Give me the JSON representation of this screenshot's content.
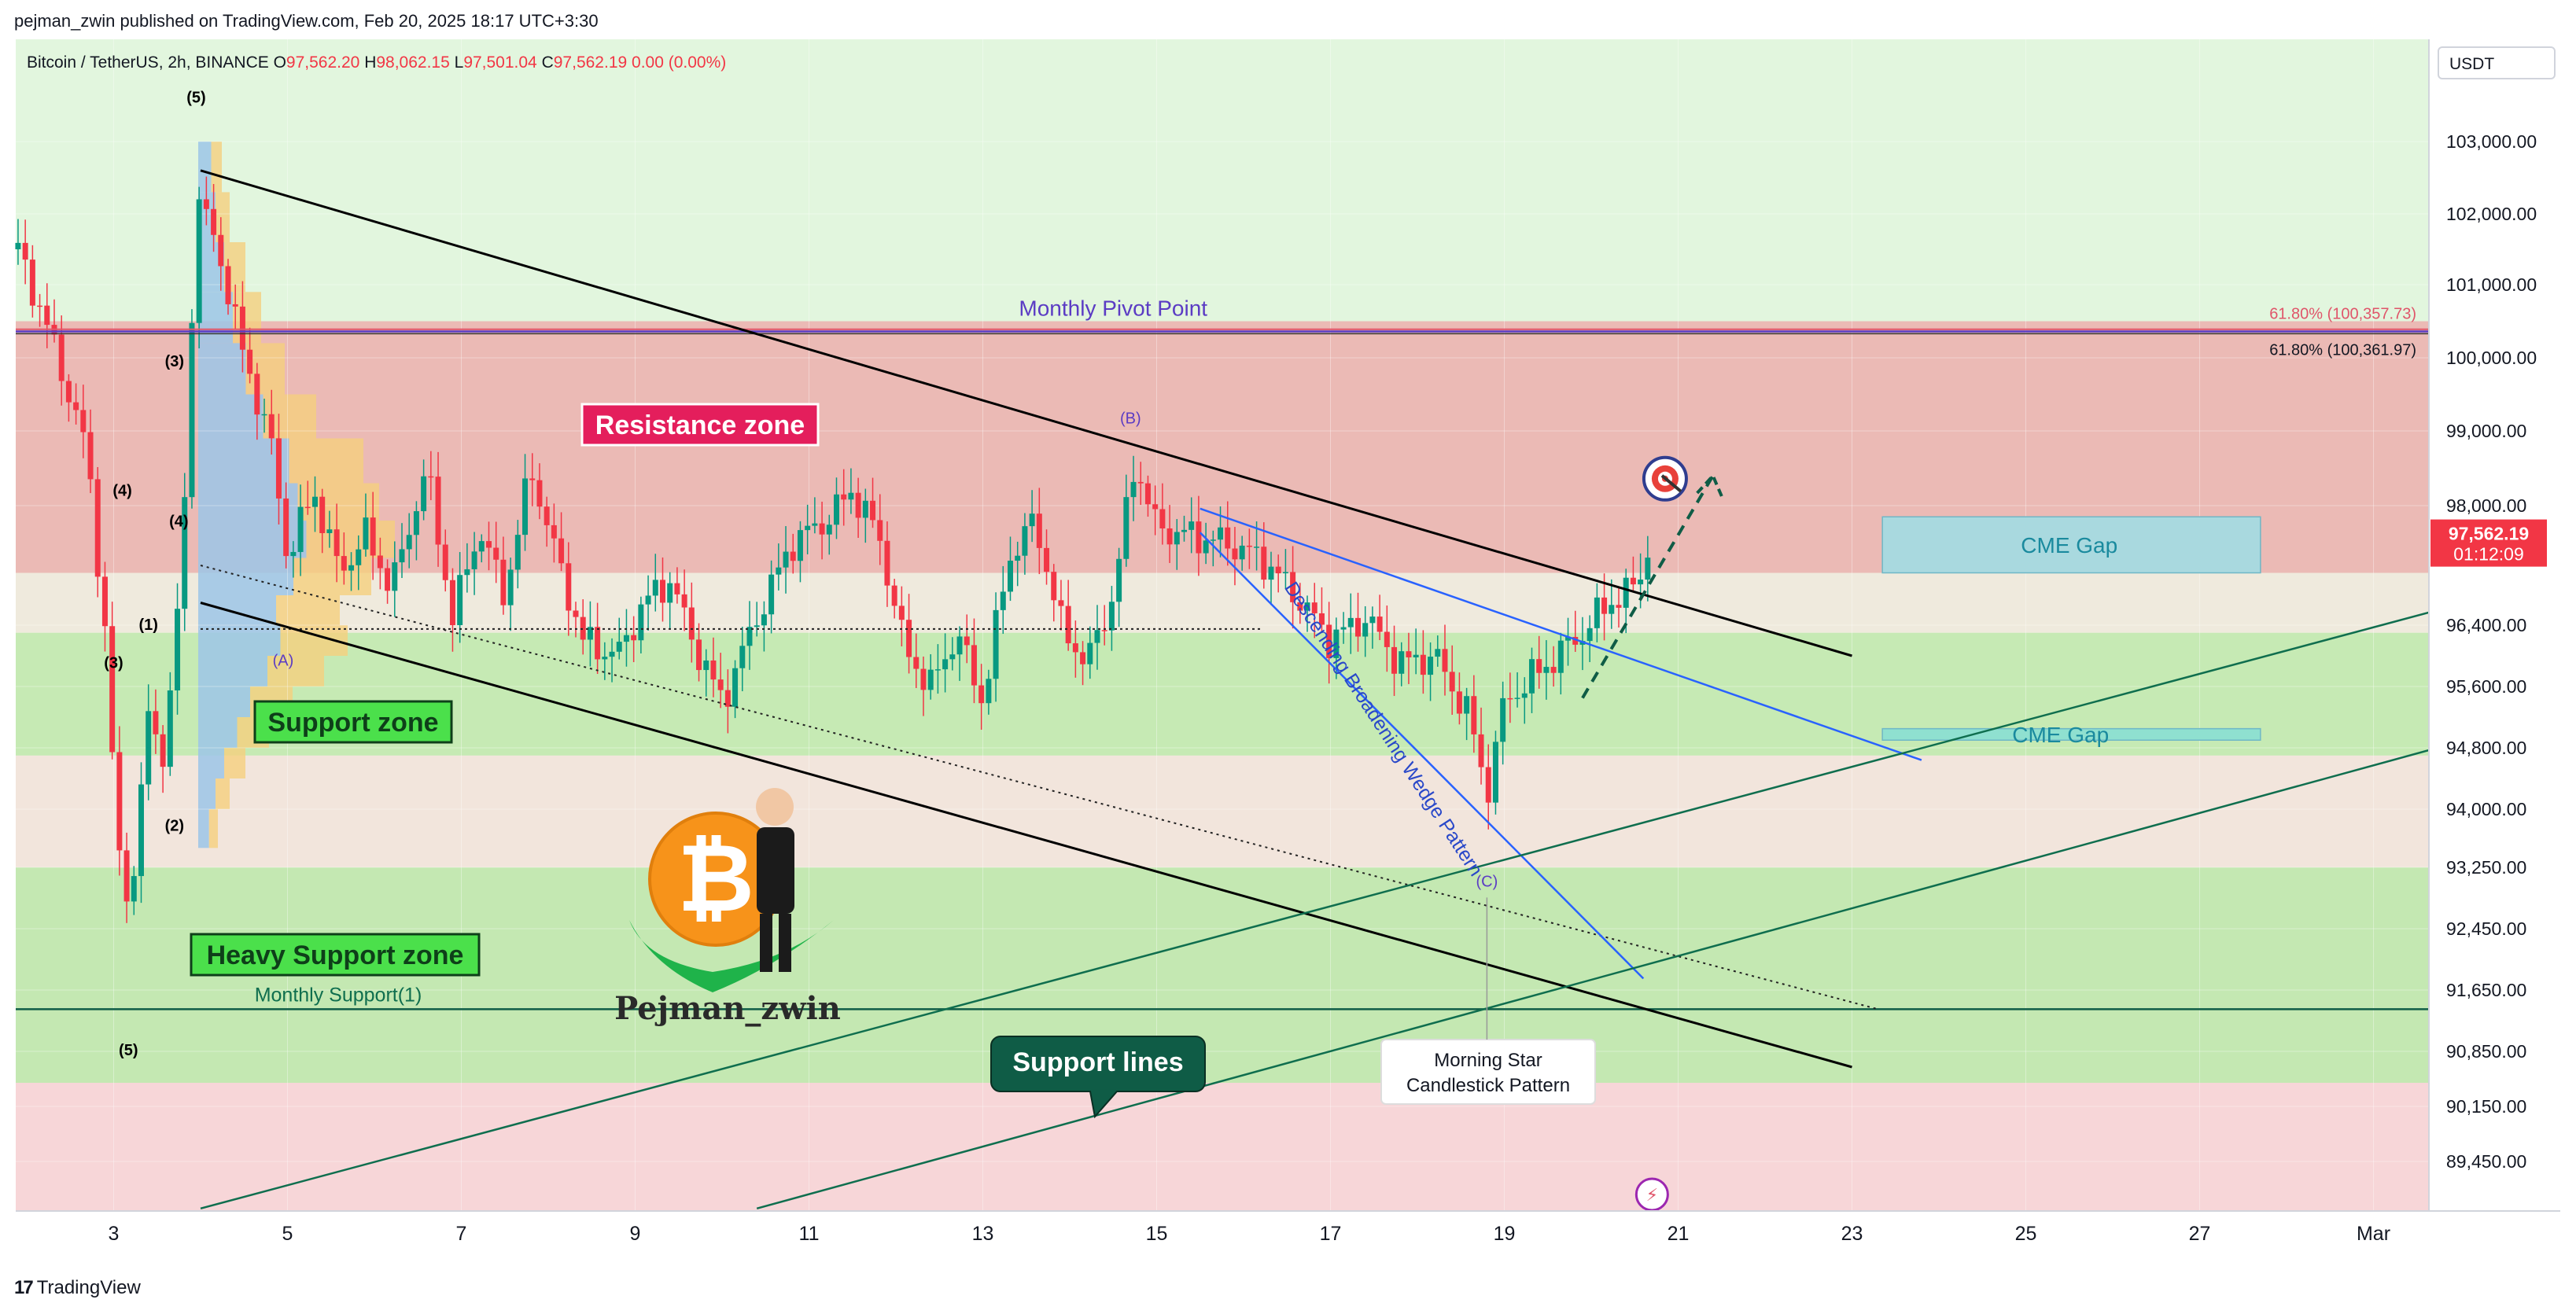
{
  "header": {
    "publisher": "pejman_zwin published on TradingView.com, Feb 20, 2025 18:17 UTC+3:30"
  },
  "legend": {
    "symbol": "Bitcoin / TetherUS, 2h, BINANCE",
    "open_label": "O",
    "open": "97,562.20",
    "high_label": "H",
    "high": "98,062.15",
    "low_label": "L",
    "low": "97,501.04",
    "close_label": "C",
    "close": "97,562.19",
    "change": "0.00 (0.00%)"
  },
  "price_axis": {
    "currency": "USDT",
    "last_price": "97,562.19",
    "countdown": "01:12:09"
  },
  "fib": {
    "label_red": "61.80% (100,357.73)",
    "label_black": "61.80% (100,361.97)"
  },
  "annotations": {
    "monthly_pivot": "Monthly Pivot Point",
    "resistance_zone": "Resistance zone",
    "support_zone": "Support zone",
    "heavy_support_zone": "Heavy Support zone",
    "monthly_support": "Monthly Support(1)",
    "support_lines": "Support lines",
    "wedge": "Descending Broadening Wedge Pattern",
    "morning_star_1": "Morning Star",
    "morning_star_2": "Candlestick Pattern",
    "cme_gap_upper": "CME Gap",
    "cme_gap_lower": "CME Gap",
    "author_logo": "Pejman_zwin",
    "wave_labels": [
      {
        "t": "(5)",
        "d": 3.95,
        "p": 103400,
        "c": "#000000"
      },
      {
        "t": "(3)",
        "d": 3.7,
        "p": 99880,
        "c": "#000000"
      },
      {
        "t": "(4)",
        "d": 3.1,
        "p": 98130,
        "c": "#000000"
      },
      {
        "t": "(4)",
        "d": 3.75,
        "p": 97720,
        "c": "#000000"
      },
      {
        "t": "(1)",
        "d": 3.4,
        "p": 96340,
        "c": "#000000"
      },
      {
        "t": "(3)",
        "d": 3.0,
        "p": 95840,
        "c": "#000000"
      },
      {
        "t": "(2)",
        "d": 3.7,
        "p": 93720,
        "c": "#000000"
      },
      {
        "t": "(5)",
        "d": 3.17,
        "p": 90800,
        "c": "#000000"
      },
      {
        "t": "(A)",
        "d": 4.95,
        "p": 95870,
        "c": "#5b3cc4"
      },
      {
        "t": "(B)",
        "d": 14.7,
        "p": 99100,
        "c": "#5b3cc4"
      },
      {
        "t": "(C)",
        "d": 18.8,
        "p": 93000,
        "c": "#5b3cc4"
      }
    ]
  },
  "chart_data": {
    "type": "candlestick",
    "symbol": "Bitcoin / TetherUS",
    "interval": "2h",
    "exchange": "BINANCE",
    "x_axis": {
      "unit": "day of month",
      "range": [
        1.9,
        29.8
      ],
      "ticks": [
        {
          "d": 3,
          "label": "3"
        },
        {
          "d": 5,
          "label": "5"
        },
        {
          "d": 7,
          "label": "7"
        },
        {
          "d": 9,
          "label": "9"
        },
        {
          "d": 11,
          "label": "11"
        },
        {
          "d": 13,
          "label": "13"
        },
        {
          "d": 15,
          "label": "15"
        },
        {
          "d": 17,
          "label": "17"
        },
        {
          "d": 19,
          "label": "19"
        },
        {
          "d": 21,
          "label": "21"
        },
        {
          "d": 23,
          "label": "23"
        },
        {
          "d": 25,
          "label": "25"
        },
        {
          "d": 27,
          "label": "27"
        },
        {
          "d": 29,
          "label": "Mar"
        }
      ]
    },
    "y_axis": {
      "range": [
        88850,
        104050
      ],
      "scale": "non-linear (printed tick labels)",
      "ticks": [
        103000,
        102000,
        101000,
        100000,
        99000,
        98000,
        96400,
        95600,
        94800,
        94000,
        93250,
        92450,
        91650,
        90850,
        90150,
        89450
      ],
      "tick_labels": [
        "103,000.00",
        "102,000.00",
        "101,000.00",
        "100,000.00",
        "99,000.00",
        "98,000.00",
        "96,400.00",
        "95,600.00",
        "94,800.00",
        "94,000.00",
        "93,250.00",
        "92,450.00",
        "91,650.00",
        "90,850.00",
        "90,150.00",
        "89,450.00"
      ]
    },
    "key_points": [
      [
        1.9,
        101500
      ],
      [
        2.3,
        100200
      ],
      [
        2.7,
        98700
      ],
      [
        2.9,
        96300
      ],
      [
        3.05,
        93400
      ],
      [
        3.2,
        92800
      ],
      [
        3.4,
        95200
      ],
      [
        3.6,
        94700
      ],
      [
        3.8,
        97500
      ],
      [
        3.95,
        102300
      ],
      [
        4.2,
        101500
      ],
      [
        4.5,
        100000
      ],
      [
        4.8,
        98900
      ],
      [
        5.0,
        97300
      ],
      [
        5.3,
        98200
      ],
      [
        5.6,
        97100
      ],
      [
        5.9,
        97600
      ],
      [
        6.2,
        96900
      ],
      [
        6.6,
        98500
      ],
      [
        6.9,
        96500
      ],
      [
        7.2,
        97700
      ],
      [
        7.5,
        96800
      ],
      [
        7.8,
        98500
      ],
      [
        8.1,
        97300
      ],
      [
        8.4,
        96200
      ],
      [
        8.8,
        96000
      ],
      [
        9.1,
        96700
      ],
      [
        9.4,
        97000
      ],
      [
        9.7,
        96100
      ],
      [
        10.0,
        95400
      ],
      [
        10.4,
        96500
      ],
      [
        10.8,
        97500
      ],
      [
        11.2,
        97800
      ],
      [
        11.5,
        98200
      ],
      [
        11.8,
        97600
      ],
      [
        12.1,
        96100
      ],
      [
        12.4,
        95600
      ],
      [
        12.7,
        96300
      ],
      [
        13.0,
        95400
      ],
      [
        13.3,
        97300
      ],
      [
        13.6,
        97800
      ],
      [
        13.9,
        96400
      ],
      [
        14.2,
        95900
      ],
      [
        14.5,
        96800
      ],
      [
        14.75,
        98600
      ],
      [
        15.0,
        97700
      ],
      [
        15.4,
        97600
      ],
      [
        15.8,
        97500
      ],
      [
        16.2,
        97300
      ],
      [
        16.6,
        96800
      ],
      [
        17.0,
        96200
      ],
      [
        17.4,
        96500
      ],
      [
        17.8,
        95900
      ],
      [
        18.2,
        96000
      ],
      [
        18.6,
        95200
      ],
      [
        18.8,
        94200
      ],
      [
        19.0,
        95400
      ],
      [
        19.3,
        95700
      ],
      [
        19.6,
        96000
      ],
      [
        19.9,
        96300
      ],
      [
        20.2,
        96700
      ],
      [
        20.5,
        96900
      ],
      [
        20.7,
        97560
      ]
    ],
    "last": {
      "open": 97562.2,
      "high": 98062.15,
      "low": 97501.04,
      "close": 97562.19,
      "change": "0.00 (0.00%)"
    },
    "levels": {
      "monthly_pivot": 100360,
      "fib_618_a": 100357.73,
      "fib_618_b": 100361.97,
      "monthly_support": 91400,
      "horizontal_dotted": 96350
    },
    "zones": {
      "resistance": [
        97100,
        100500
      ],
      "support": [
        94700,
        96300
      ],
      "heavy_support": [
        90450,
        93250
      ],
      "cme_gap_upper": [
        97100,
        97850
      ],
      "cme_gap_lower": [
        94900,
        95050
      ]
    },
    "trendlines": [
      {
        "name": "channel-top",
        "from": [
          4.0,
          102600
        ],
        "to": [
          23.0,
          96000
        ]
      },
      {
        "name": "channel-bottom",
        "from": [
          4.0,
          96700
        ],
        "to": [
          23.0,
          90650
        ]
      },
      {
        "name": "dotted-inner",
        "from": [
          4.0,
          97200
        ],
        "to": [
          23.3,
          91400
        ]
      },
      {
        "name": "wedge-upper",
        "from": [
          15.5,
          97960
        ],
        "to": [
          23.8,
          94640
        ]
      },
      {
        "name": "wedge-lower",
        "from": [
          15.5,
          97640
        ],
        "to": [
          20.6,
          91800
        ]
      },
      {
        "name": "support-line-1",
        "from": [
          4.0,
          88880
        ],
        "to": [
          29.8,
          96620
        ]
      },
      {
        "name": "support-line-2",
        "from": [
          10.4,
          88880
        ],
        "to": [
          29.8,
          94820
        ]
      }
    ],
    "projection": {
      "from": [
        19.9,
        95450
      ],
      "to": [
        21.4,
        98400
      ]
    },
    "target_point": [
      20.85,
      98360
    ],
    "flash_marker": [
      20.7,
      89050
    ]
  }
}
